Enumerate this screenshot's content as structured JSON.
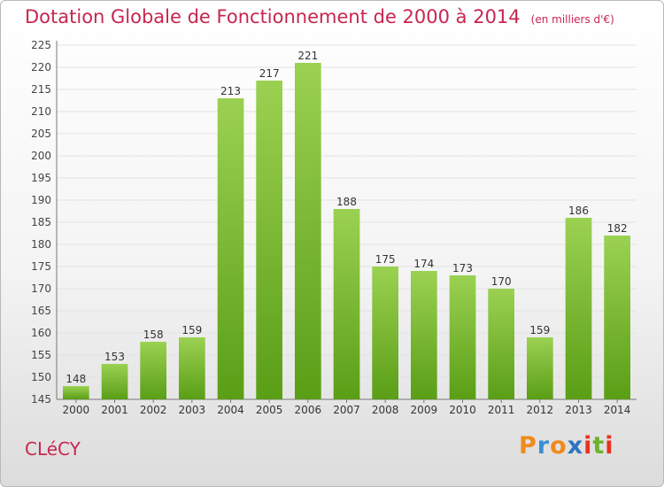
{
  "header": {
    "title": "Dotation Globale de Fonctionnement de 2000 à 2014",
    "unit": "(en milliers d'€)"
  },
  "footer": {
    "commune": "CLéCY",
    "brand": [
      "P",
      "r",
      "o",
      "x",
      "i",
      "t",
      "i"
    ]
  },
  "colors": {
    "title": "#c8264f",
    "bar_top": "#9bd152",
    "bar_bottom": "#5a9e16",
    "brand": [
      "#f08a1c",
      "#3b8fd4",
      "#f08a1c",
      "#2e74c0",
      "#e8321e",
      "#6ab42b",
      "#e8321e"
    ]
  },
  "chart_data": {
    "type": "bar",
    "categories": [
      "2000",
      "2001",
      "2002",
      "2003",
      "2004",
      "2005",
      "2006",
      "2007",
      "2008",
      "2009",
      "2010",
      "2011",
      "2012",
      "2013",
      "2014"
    ],
    "values": [
      148,
      153,
      158,
      159,
      213,
      217,
      221,
      188,
      175,
      174,
      173,
      170,
      159,
      186,
      182
    ],
    "title": "Dotation Globale de Fonctionnement de 2000 à 2014",
    "ylim": [
      145,
      225
    ],
    "yticks": [
      145,
      150,
      155,
      160,
      165,
      170,
      175,
      180,
      185,
      190,
      195,
      200,
      205,
      210,
      215,
      220,
      225
    ],
    "grid": true,
    "data_labels": true
  }
}
